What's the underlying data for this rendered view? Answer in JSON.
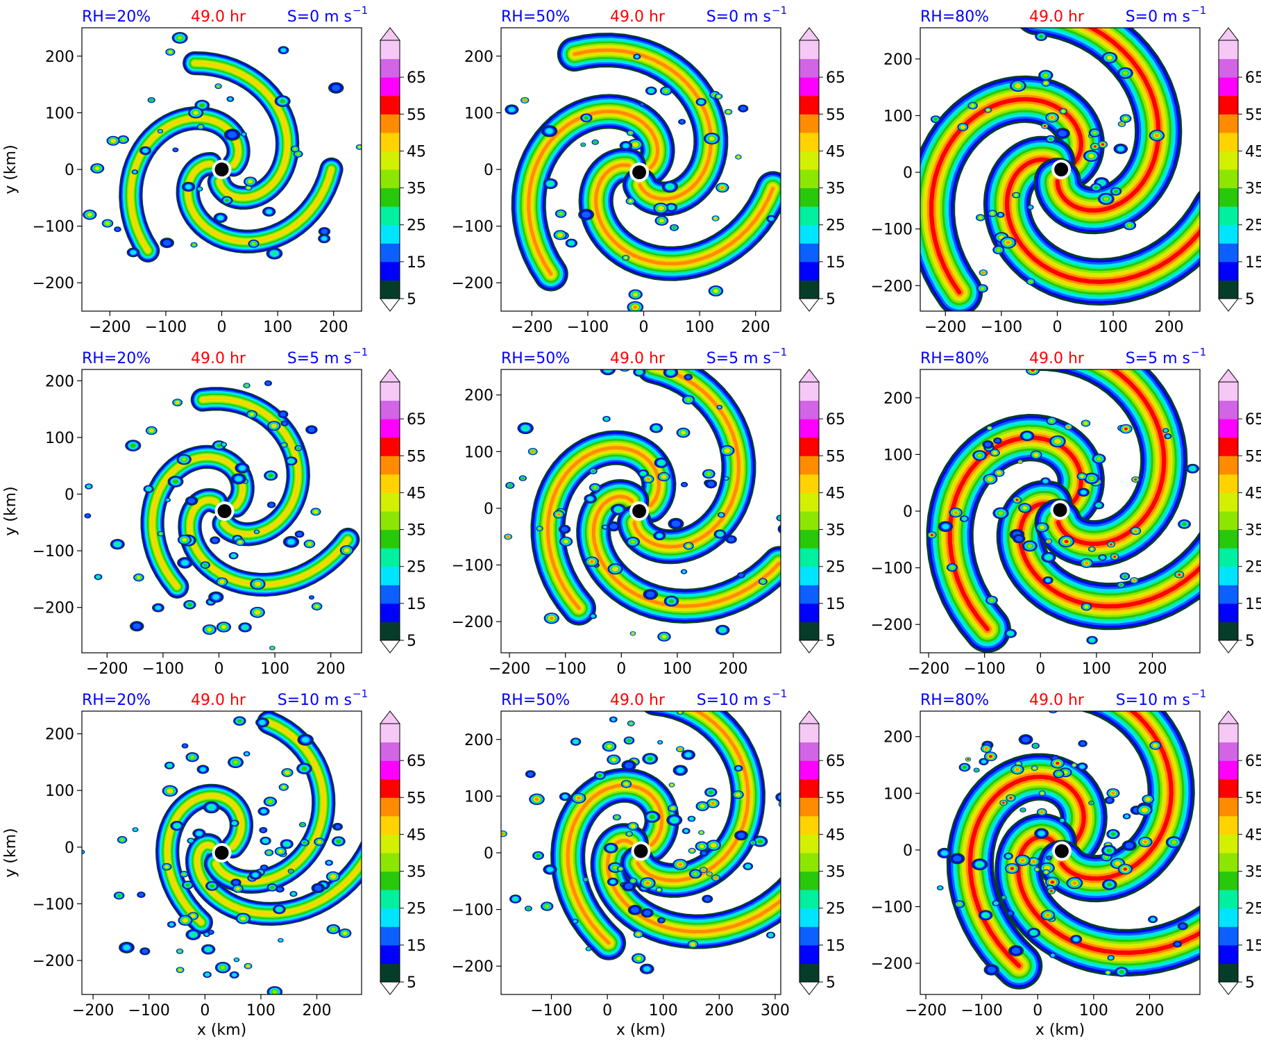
{
  "figure": {
    "x_axis_label": "x (km)",
    "y_axis_label": "y (km)",
    "panel_time_label": "49.0 hr",
    "title_colors": {
      "rh": "#0000ff",
      "time": "#ff0000",
      "shear": "#0000ff"
    }
  },
  "colorbar": {
    "levels": [
      5,
      10,
      15,
      20,
      25,
      30,
      35,
      40,
      45,
      50,
      55,
      60,
      65,
      70
    ],
    "tick_labels": [
      "5",
      "15",
      "25",
      "35",
      "45",
      "55",
      "65"
    ],
    "colors": [
      "#053d2a",
      "#0000ff",
      "#0b60ff",
      "#00e5ff",
      "#00f0a0",
      "#28c80a",
      "#8ce600",
      "#d2f000",
      "#ffd200",
      "#ff8c00",
      "#ff0000",
      "#ff00ff",
      "#d264e6",
      "#f5c8f5"
    ],
    "extend": "both"
  },
  "chart_data": [
    {
      "type": "heatmap",
      "panel_row": 0,
      "panel_col": 0,
      "title_left": "RH=20%",
      "title_center": "49.0 hr",
      "title_right_prefix": "S=0 m s",
      "title_right_exp": "−1",
      "xlim": [
        -250,
        250
      ],
      "ylim": [
        -250,
        250
      ],
      "xticks": [
        -200,
        -100,
        0,
        100,
        200
      ],
      "yticks": [
        -200,
        -100,
        0,
        100,
        200
      ],
      "xlabel": "",
      "ylabel": "y (km)",
      "center_marker": [
        0,
        0
      ]
    },
    {
      "type": "heatmap",
      "panel_row": 0,
      "panel_col": 1,
      "title_left": "RH=50%",
      "title_center": "49.0 hr",
      "title_right_prefix": "S=0 m s",
      "title_right_exp": "−1",
      "xlim": [
        -255,
        245
      ],
      "ylim": [
        -250,
        250
      ],
      "xticks": [
        -200,
        -100,
        0,
        100,
        200
      ],
      "yticks": [
        -200,
        -100,
        0,
        100,
        200
      ],
      "xlabel": "",
      "ylabel": "",
      "center_marker": [
        -8,
        -5
      ]
    },
    {
      "type": "heatmap",
      "panel_row": 0,
      "panel_col": 2,
      "title_left": "RH=80%",
      "title_center": "49.0 hr",
      "title_right_prefix": "S=0 m s",
      "title_right_exp": "−1",
      "xlim": [
        -245,
        255
      ],
      "ylim": [
        -245,
        255
      ],
      "xticks": [
        -200,
        -100,
        0,
        100,
        200
      ],
      "yticks": [
        -200,
        -100,
        0,
        100,
        200
      ],
      "xlabel": "",
      "ylabel": "",
      "center_marker": [
        7,
        5
      ]
    },
    {
      "type": "heatmap",
      "panel_row": 1,
      "panel_col": 0,
      "title_left": "RH=20%",
      "title_center": "49.0 hr",
      "title_right_prefix": "S=5 m s",
      "title_right_exp": "−1",
      "xlim": [
        -245,
        255
      ],
      "ylim": [
        -280,
        220
      ],
      "xticks": [
        -200,
        -100,
        0,
        100,
        200
      ],
      "yticks": [
        -200,
        -100,
        0,
        100,
        200
      ],
      "xlabel": "",
      "ylabel": "y (km)",
      "center_marker": [
        10,
        -30
      ]
    },
    {
      "type": "heatmap",
      "panel_row": 1,
      "panel_col": 1,
      "title_left": "RH=50%",
      "title_center": "49.0 hr",
      "title_right_prefix": "S=5 m s",
      "title_right_exp": "−1",
      "xlim": [
        -215,
        285
      ],
      "ylim": [
        -255,
        245
      ],
      "xticks": [
        -200,
        -100,
        0,
        100,
        200
      ],
      "yticks": [
        -200,
        -100,
        0,
        100,
        200
      ],
      "xlabel": "",
      "ylabel": "",
      "center_marker": [
        32,
        -5
      ]
    },
    {
      "type": "heatmap",
      "panel_row": 1,
      "panel_col": 2,
      "title_left": "RH=80%",
      "title_center": "49.0 hr",
      "title_right_prefix": "S=5 m s",
      "title_right_exp": "−1",
      "xlim": [
        -215,
        285
      ],
      "ylim": [
        -250,
        250
      ],
      "xticks": [
        -200,
        -100,
        0,
        100,
        200
      ],
      "yticks": [
        -200,
        -100,
        0,
        100,
        200
      ],
      "xlabel": "",
      "ylabel": "",
      "center_marker": [
        35,
        2
      ]
    },
    {
      "type": "heatmap",
      "panel_row": 2,
      "panel_col": 0,
      "title_left": "RH=20%",
      "title_center": "49.0 hr",
      "title_right_prefix": "S=10 m s",
      "title_right_exp": "−1",
      "xlim": [
        -220,
        280
      ],
      "ylim": [
        -260,
        240
      ],
      "xticks": [
        -200,
        -100,
        0,
        100,
        200
      ],
      "yticks": [
        -200,
        -100,
        0,
        100,
        200
      ],
      "xlabel": "x (km)",
      "ylabel": "y (km)",
      "center_marker": [
        30,
        -10
      ]
    },
    {
      "type": "heatmap",
      "panel_row": 2,
      "panel_col": 1,
      "title_left": "RH=50%",
      "title_center": "49.0 hr",
      "title_right_prefix": "S=10 m s",
      "title_right_exp": "−1",
      "xlim": [
        -190,
        310
      ],
      "ylim": [
        -250,
        250
      ],
      "xticks": [
        -100,
        0,
        100,
        200,
        300
      ],
      "yticks": [
        -200,
        -100,
        0,
        100,
        200
      ],
      "xlabel": "x (km)",
      "ylabel": "",
      "center_marker": [
        60,
        3
      ]
    },
    {
      "type": "heatmap",
      "panel_row": 2,
      "panel_col": 2,
      "title_left": "RH=80%",
      "title_center": "49.0 hr",
      "title_right_prefix": "S=10 m s",
      "title_right_exp": "−1",
      "xlim": [
        -210,
        290
      ],
      "ylim": [
        -255,
        245
      ],
      "xticks": [
        -200,
        -100,
        0,
        100,
        200
      ],
      "yticks": [
        -200,
        -100,
        0,
        100,
        200
      ],
      "xlabel": "x (km)",
      "ylabel": "",
      "center_marker": [
        43,
        -2
      ]
    }
  ]
}
